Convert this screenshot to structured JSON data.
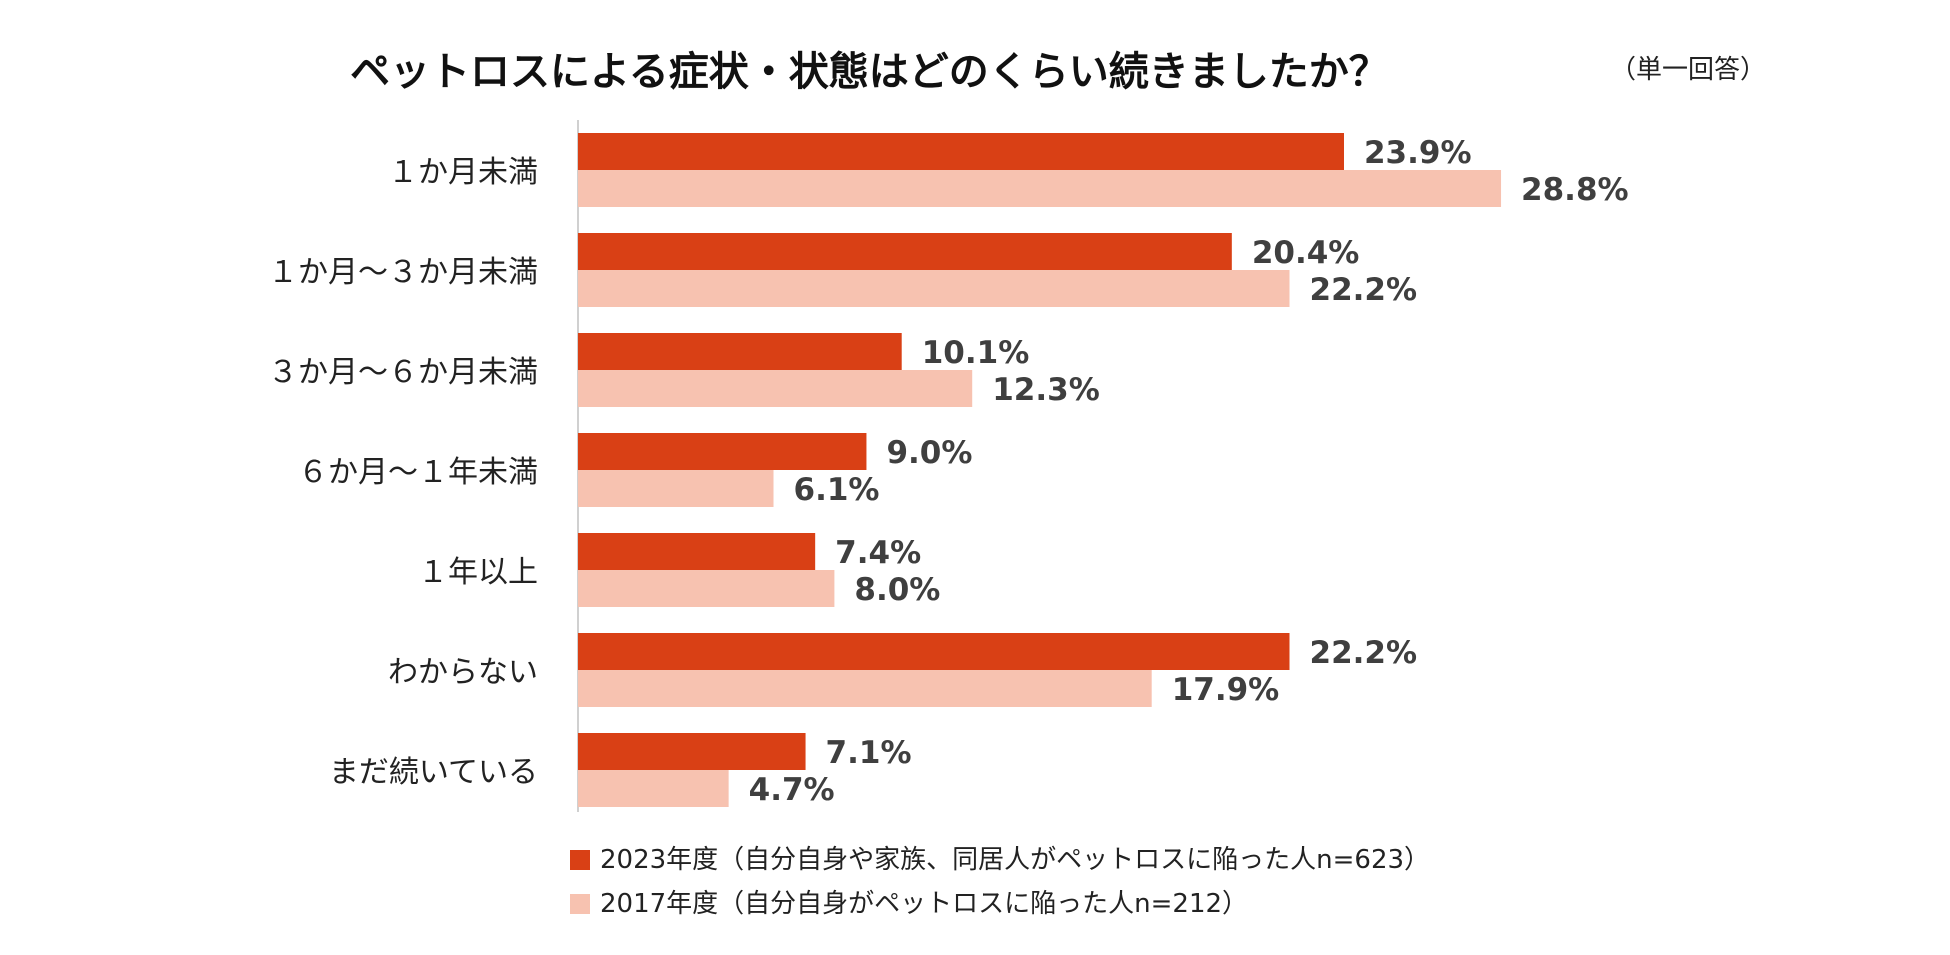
{
  "chart_data": {
    "type": "bar",
    "orientation": "horizontal",
    "title": "ペットロスによる症状・状態はどのくらい続きましたか？",
    "subtitle": "（単一回答）",
    "categories": [
      "１か月未満",
      "１か月～３か月未満",
      "３か月～６か月未満",
      "６か月～１年未満",
      "１年以上",
      "わからない",
      "まだ続いている"
    ],
    "series": [
      {
        "name": "2023年度（自分自身や家族、同居人がペットロスに陥った人n=623）",
        "color": "#d94015",
        "values": [
          23.9,
          20.4,
          10.1,
          9.0,
          7.4,
          22.2,
          7.1
        ],
        "labels": [
          "23.9%",
          "20.4%",
          "10.1%",
          "9.0%",
          "7.4%",
          "22.2%",
          "7.1%"
        ]
      },
      {
        "name": "2017年度（自分自身がペットロスに陥った人n=212）",
        "color": "#f7c2b0",
        "values": [
          28.8,
          22.2,
          12.3,
          6.1,
          8.0,
          17.9,
          4.7
        ],
        "labels": [
          "28.8%",
          "22.2%",
          "12.3%",
          "6.1%",
          "8.0%",
          "17.9%",
          "4.7%"
        ]
      }
    ],
    "xlim": [
      0,
      30
    ],
    "grid": false,
    "legend": "bottom"
  },
  "colors": {
    "axis": "#d0d0d0",
    "value_text": "#3f3f3f"
  }
}
